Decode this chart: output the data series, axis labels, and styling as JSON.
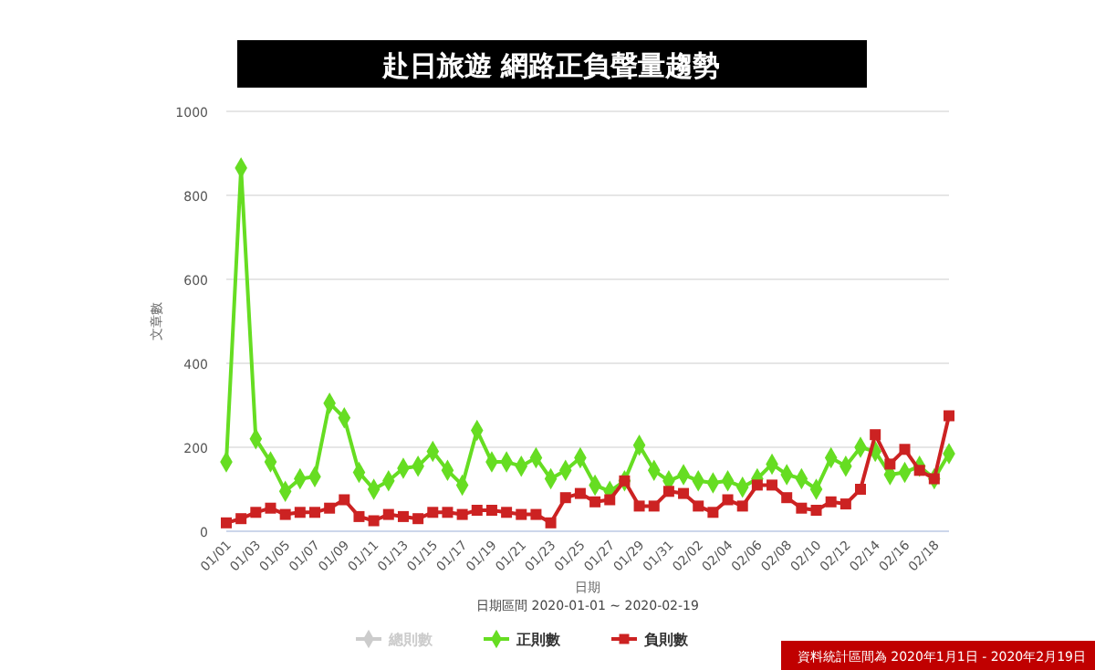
{
  "chart_data": {
    "type": "line",
    "title": "赴日旅遊 網路正負聲量趨勢",
    "xlabel": "日期",
    "ylabel": "文章數",
    "annotations": [
      "日期區間 2020-01-01 ~ 2020-02-19",
      "資料統計區間為 2020年1月1日 - 2020年2月19日"
    ],
    "categories": [
      "01/01",
      null,
      "01/03",
      null,
      "01/05",
      null,
      "01/07",
      null,
      "01/09",
      null,
      "01/11",
      null,
      "01/13",
      null,
      "01/15",
      null,
      "01/17",
      null,
      "01/19",
      null,
      "01/21",
      null,
      "01/23",
      null,
      "01/25",
      null,
      "01/27",
      null,
      "01/29",
      null,
      "01/31",
      null,
      "02/02",
      null,
      "02/04",
      null,
      "02/06",
      null,
      "02/08",
      null,
      "02/10",
      null,
      "02/12",
      null,
      "02/14",
      null,
      "02/16",
      null,
      "02/18",
      null
    ],
    "ylim": [
      0,
      1000
    ],
    "yticks": [
      0,
      200,
      400,
      600,
      800,
      1000
    ],
    "grid": "y",
    "legend": "bottom",
    "series": [
      {
        "name": "總則數",
        "color": "#cccccc",
        "marker": "diamond",
        "values": [
          null,
          null,
          null,
          null,
          null,
          null,
          null,
          null,
          null,
          null,
          null,
          null,
          null,
          null,
          null,
          null,
          null,
          null,
          null,
          null,
          null,
          null,
          null,
          null,
          null,
          null,
          null,
          null,
          null,
          null,
          null,
          null,
          null,
          null,
          null,
          null,
          null,
          null,
          null,
          null,
          null,
          null,
          null,
          null,
          null,
          null,
          null,
          null,
          null,
          null
        ]
      },
      {
        "name": "正則數",
        "color": "#66dd22",
        "marker": "diamond",
        "values": [
          165,
          865,
          220,
          165,
          95,
          125,
          130,
          305,
          270,
          140,
          100,
          120,
          150,
          155,
          190,
          145,
          110,
          240,
          165,
          165,
          155,
          175,
          125,
          145,
          175,
          110,
          95,
          120,
          205,
          145,
          120,
          135,
          120,
          115,
          120,
          105,
          125,
          160,
          135,
          125,
          100,
          175,
          155,
          200,
          190,
          135,
          140,
          155,
          125,
          185
        ]
      },
      {
        "name": "負則數",
        "color": "#cc2222",
        "marker": "square",
        "values": [
          20,
          30,
          45,
          55,
          40,
          45,
          45,
          55,
          75,
          35,
          25,
          40,
          35,
          30,
          45,
          45,
          40,
          50,
          50,
          45,
          40,
          40,
          20,
          80,
          90,
          70,
          75,
          120,
          60,
          60,
          95,
          90,
          60,
          45,
          75,
          60,
          110,
          110,
          80,
          55,
          50,
          70,
          65,
          100,
          230,
          160,
          195,
          145,
          125,
          275
        ]
      }
    ]
  }
}
